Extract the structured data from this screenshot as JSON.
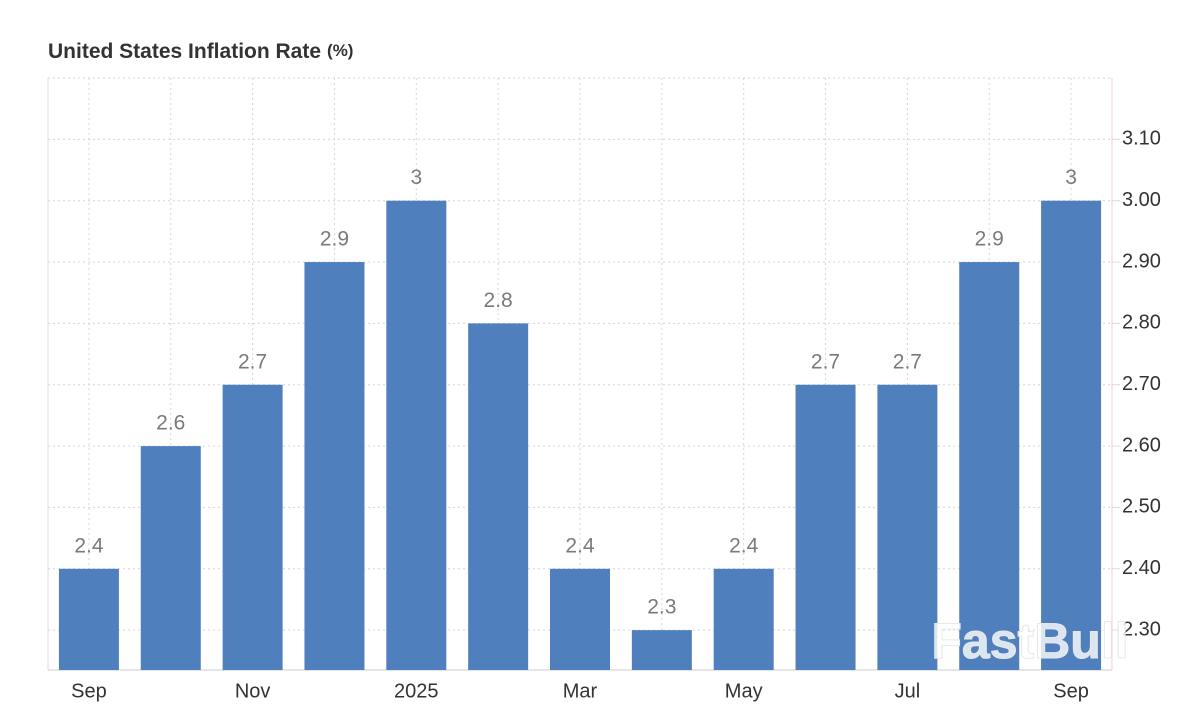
{
  "chart_data": {
    "type": "bar",
    "title": "United States Inflation Rate",
    "unit": "(%)",
    "categories": [
      "Sep",
      null,
      "Nov",
      null,
      "2025",
      null,
      "Mar",
      null,
      "May",
      null,
      "Jul",
      null,
      "Sep"
    ],
    "values": [
      2.4,
      2.6,
      2.7,
      2.9,
      3,
      2.8,
      2.4,
      2.3,
      2.4,
      2.7,
      2.7,
      2.9,
      3
    ],
    "color": "#4f80bd",
    "ylim": [
      2.235,
      3.2
    ],
    "yticks": [
      {
        "value": 2.3,
        "label": "2.30"
      },
      {
        "value": 2.4,
        "label": "2.40"
      },
      {
        "value": 2.5,
        "label": "2.50"
      },
      {
        "value": 2.6,
        "label": "2.60"
      },
      {
        "value": 2.7,
        "label": "2.70"
      },
      {
        "value": 2.8,
        "label": "2.80"
      },
      {
        "value": 2.9,
        "label": "2.90"
      },
      {
        "value": 3,
        "label": "3.00"
      },
      {
        "value": 3.1,
        "label": "3.10"
      }
    ],
    "grid": true,
    "watermark": "FastBull"
  }
}
